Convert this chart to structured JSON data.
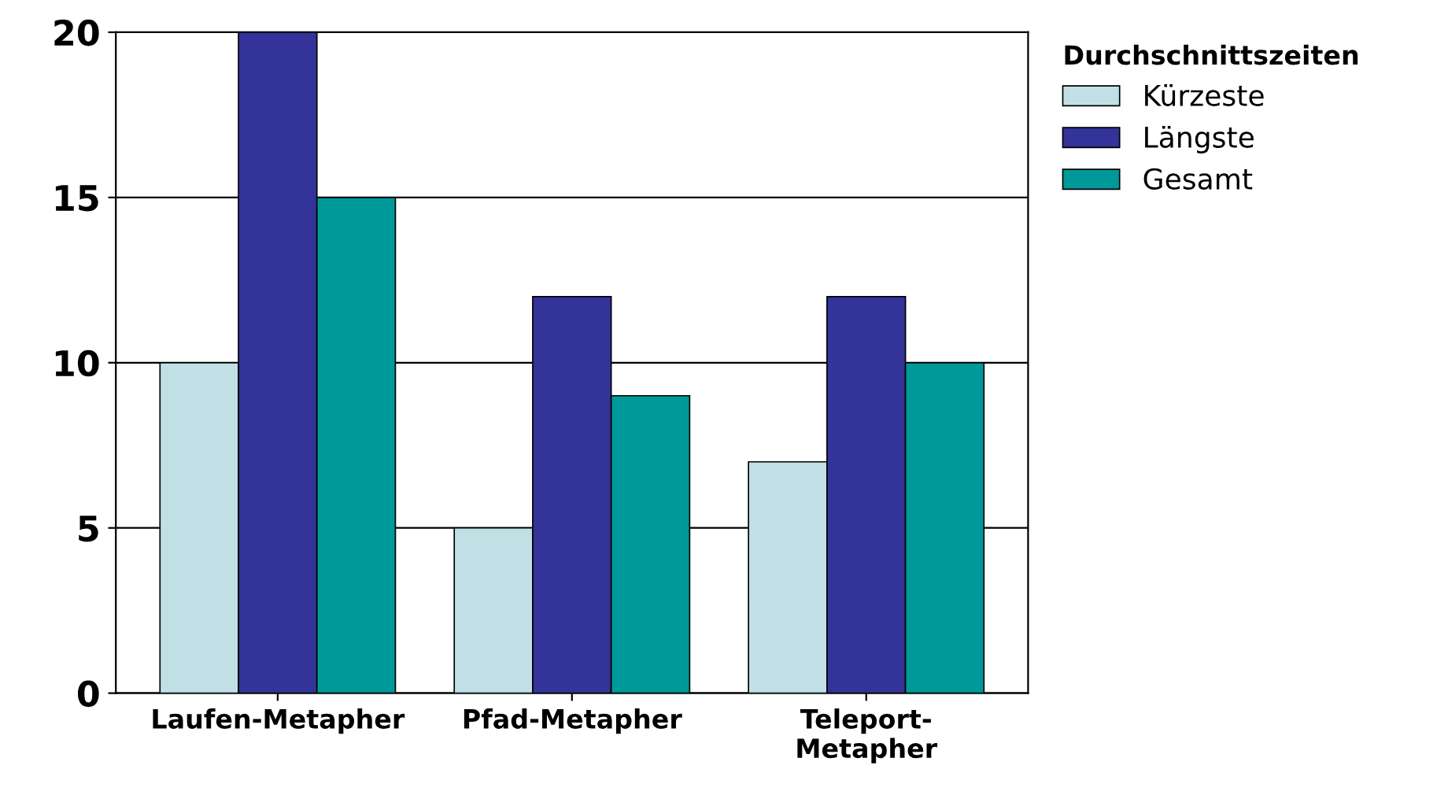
{
  "chart_data": {
    "type": "bar",
    "categories": [
      "Laufen-Metapher",
      "Pfad-Metapher",
      "Teleport-\nMetapher"
    ],
    "series": [
      {
        "name": "Kürzeste",
        "color": "#c0e0e6",
        "values": [
          10,
          5,
          7
        ]
      },
      {
        "name": "Längste",
        "color": "#333399",
        "values": [
          20,
          12,
          12
        ]
      },
      {
        "name": "Gesamt",
        "color": "#009999",
        "values": [
          15,
          9,
          10
        ]
      }
    ],
    "legend_title": "Durchschnittszeiten",
    "ylim": [
      0,
      20
    ],
    "yticks": [
      0,
      5,
      10,
      15,
      20
    ],
    "grid": "y",
    "legend": "top right"
  }
}
